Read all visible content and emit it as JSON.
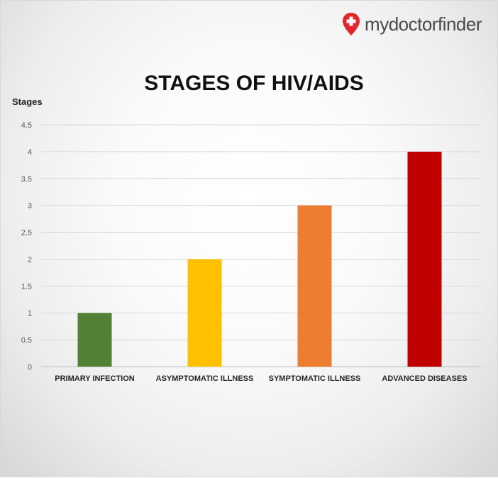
{
  "brand": {
    "name": "mydoctorfinder",
    "icon": "map-pin-cross-icon",
    "icon_color": "#e3262d"
  },
  "chart_data": {
    "type": "bar",
    "title": "STAGES OF HIV/AIDS",
    "ylabel": "Stages",
    "xlabel": "",
    "categories": [
      "PRIMARY INFECTION",
      "ASYMPTOMATIC ILLNESS",
      "SYMPTOMATIC ILLNESS",
      "ADVANCED DISEASES"
    ],
    "values": [
      1,
      2,
      3,
      4
    ],
    "colors": [
      "#538135",
      "#ffc000",
      "#ed7d31",
      "#c00000"
    ],
    "ylim": [
      0,
      4.5
    ],
    "yticks": [
      "0",
      "0.5",
      "1",
      "1.5",
      "2",
      "2.5",
      "3",
      "3.5",
      "4",
      "4.5"
    ],
    "grid": true,
    "legend": "none"
  }
}
